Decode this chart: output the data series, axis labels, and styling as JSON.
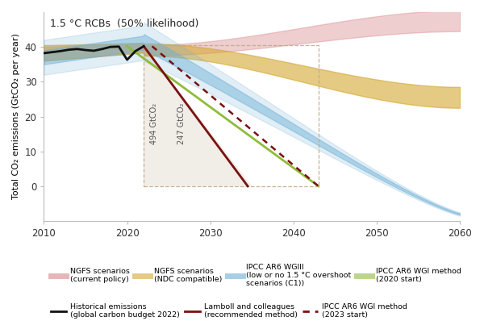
{
  "title": "1.5 °C RCBs  (50% likelihood)",
  "ylabel": "Total CO₂ emissions (GtCO₂ per year)",
  "xlim": [
    2010,
    2060
  ],
  "ylim": [
    -10,
    50
  ],
  "yticks": [
    0,
    10,
    20,
    30,
    40
  ],
  "xticks": [
    2010,
    2020,
    2030,
    2040,
    2050,
    2060
  ],
  "budget_494_label": "494 GtCO₂",
  "budget_247_label": "247 GtCO₂",
  "colors": {
    "ngfs_current": "#d9868a",
    "ngfs_ndc": "#d4a830",
    "ipcc_wgiii": "#6baed6",
    "ipcc_wgi_2020": "#8fbc3a",
    "historical": "#111111",
    "lamboll": "#7a1010",
    "ipcc_wgi_2023": "#7a1010"
  },
  "legend_row1": [
    {
      "label": "NGFS scenarios\n(current policy)",
      "color": "#d9868a",
      "lw": 5,
      "ls": "solid"
    },
    {
      "label": "NGFS scenarios\n(NDC compatible)",
      "color": "#d4a830",
      "lw": 5,
      "ls": "solid"
    },
    {
      "label": "IPCC AR6 WGIII\n(low or no 1.5 °C overshoot\nscenarios (C1))",
      "color": "#6baed6",
      "lw": 5,
      "ls": "solid"
    },
    {
      "label": "IPCC AR6 WGI method\n(2020 start)",
      "color": "#8fbc3a",
      "lw": 2,
      "ls": "solid"
    }
  ],
  "legend_row2": [
    {
      "label": "Historical emissions\n(global carbon budget 2022)",
      "color": "#111111",
      "lw": 2,
      "ls": "solid"
    },
    {
      "label": "Lamboll and colleagues\n(recommended method)",
      "color": "#7a1010",
      "lw": 2,
      "ls": "solid"
    },
    {
      "label": "IPCC AR6 WGI method\n(2023 start)",
      "color": "#7a1010",
      "lw": 2,
      "ls": "dotted"
    }
  ]
}
